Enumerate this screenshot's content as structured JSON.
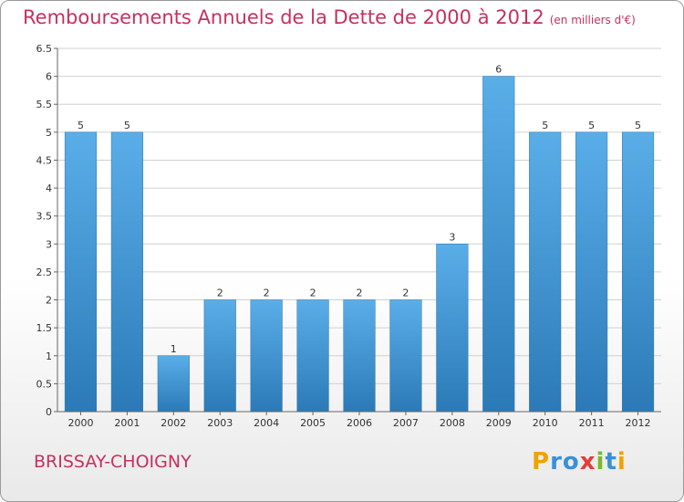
{
  "title": "Remboursements Annuels de la Dette de 2000 à 2012",
  "unit": "(en milliers d'€)",
  "commune": "BRISSAY-CHOIGNY",
  "logo": {
    "text": "Proxiti",
    "letters": [
      {
        "ch": "P",
        "color": "#f0a202"
      },
      {
        "ch": "r",
        "color": "#3a8fd8"
      },
      {
        "ch": "o",
        "color": "#3a8fd8"
      },
      {
        "ch": "x",
        "color": "#e23d3d"
      },
      {
        "ch": "i",
        "color": "#7ab929"
      },
      {
        "ch": "t",
        "color": "#3a8fd8"
      },
      {
        "ch": "i",
        "color": "#f0a202"
      }
    ]
  },
  "colors": {
    "title": "#c5315d",
    "bar_top": "#5aaee8",
    "bar_bottom": "#2b7ab7",
    "grid": "#d0d0d0"
  },
  "chart_data": {
    "type": "bar",
    "categories": [
      "2000",
      "2001",
      "2002",
      "2003",
      "2004",
      "2005",
      "2006",
      "2007",
      "2008",
      "2009",
      "2010",
      "2011",
      "2012"
    ],
    "values": [
      5,
      5,
      1,
      2,
      2,
      2,
      2,
      2,
      3,
      6,
      5,
      5,
      5
    ],
    "ylim": [
      0,
      6.5
    ],
    "yticks": [
      "0",
      "0.5",
      "1",
      "1.5",
      "2",
      "2.5",
      "3",
      "3.5",
      "4",
      "4.5",
      "5",
      "5.5",
      "6",
      "6.5"
    ],
    "grid": true,
    "xlabel": "",
    "ylabel": ""
  }
}
